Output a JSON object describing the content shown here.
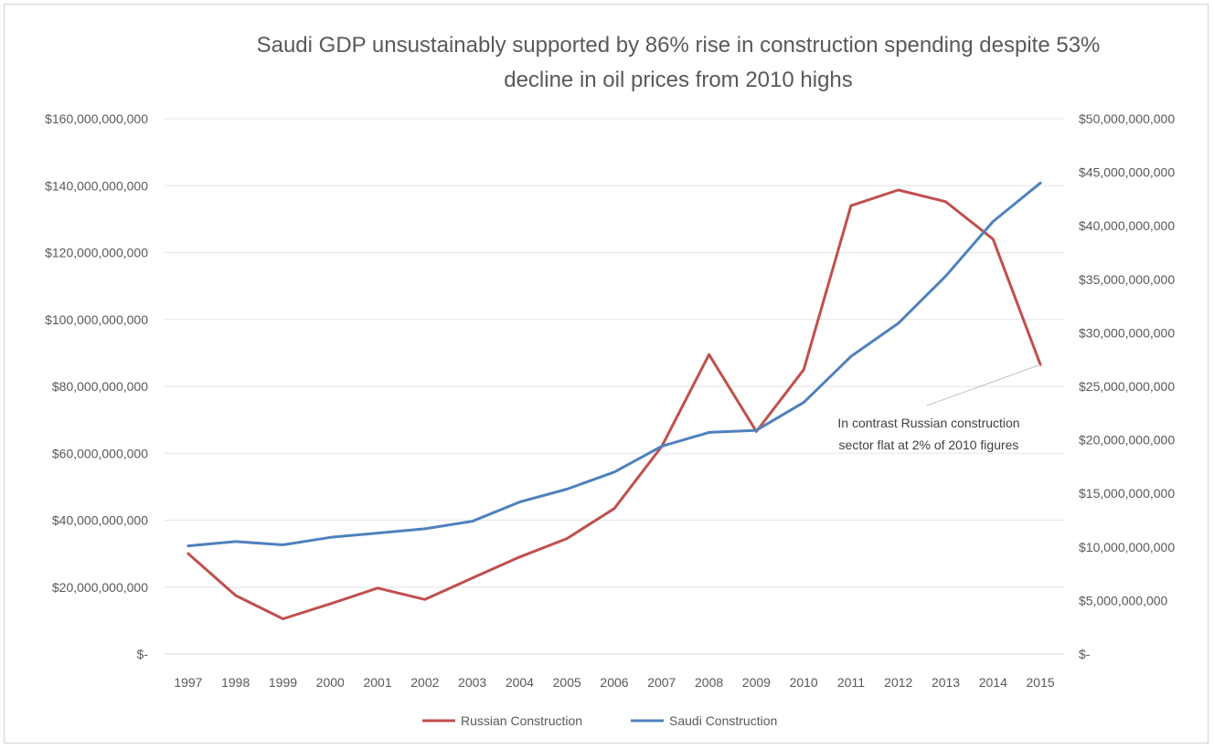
{
  "chart_data": {
    "type": "line",
    "title_lines": [
      "Saudi  GDP  unsustainably supported  by 86% rise in construction spending despite 53%",
      "decline in oil prices from 2010 highs"
    ],
    "x": [
      "1997",
      "1998",
      "1999",
      "2000",
      "2001",
      "2002",
      "2003",
      "2004",
      "2005",
      "2006",
      "2007",
      "2008",
      "2009",
      "2010",
      "2011",
      "2012",
      "2013",
      "2014",
      "2015"
    ],
    "left_axis": {
      "ylim": [
        0,
        160000000000
      ],
      "tick_labels": [
        "$-",
        "$20,000,000,000",
        "$40,000,000,000",
        "$60,000,000,000",
        "$80,000,000,000",
        "$100,000,000,000",
        "$120,000,000,000",
        "$140,000,000,000",
        "$160,000,000,000"
      ]
    },
    "right_axis": {
      "ylim": [
        0,
        50000000000
      ],
      "tick_labels": [
        "$-",
        "$5,000,000,000",
        "$10,000,000,000",
        "$15,000,000,000",
        "$20,000,000,000",
        "$25,000,000,000",
        "$30,000,000,000",
        "$35,000,000,000",
        "$40,000,000,000",
        "$45,000,000,000",
        "$50,000,000,000"
      ]
    },
    "series": [
      {
        "name": "Russian Construction",
        "axis": "left",
        "color": "#c0504d",
        "values": [
          30000000000,
          17500000000,
          10500000000,
          15000000000,
          19700000000,
          16300000000,
          22700000000,
          29000000000,
          34500000000,
          43500000000,
          62000000000,
          89500000000,
          66500000000,
          85000000000,
          134000000000,
          138700000000,
          135200000000,
          124000000000,
          86500000000
        ]
      },
      {
        "name": "Saudi Construction",
        "axis": "right",
        "color": "#4f81bd",
        "values": [
          10100000000,
          10500000000,
          10200000000,
          10900000000,
          11300000000,
          11700000000,
          12400000000,
          14200000000,
          15400000000,
          17000000000,
          19400000000,
          20700000000,
          20900000000,
          23500000000,
          27800000000,
          30900000000,
          35300000000,
          40400000000,
          44000000000
        ]
      }
    ],
    "annotation": {
      "lines": [
        "In contrast Russian construction",
        "sector flat at 2% of 2010 figures"
      ],
      "points_to": "2015"
    },
    "grid": true,
    "legend_position": "bottom"
  }
}
